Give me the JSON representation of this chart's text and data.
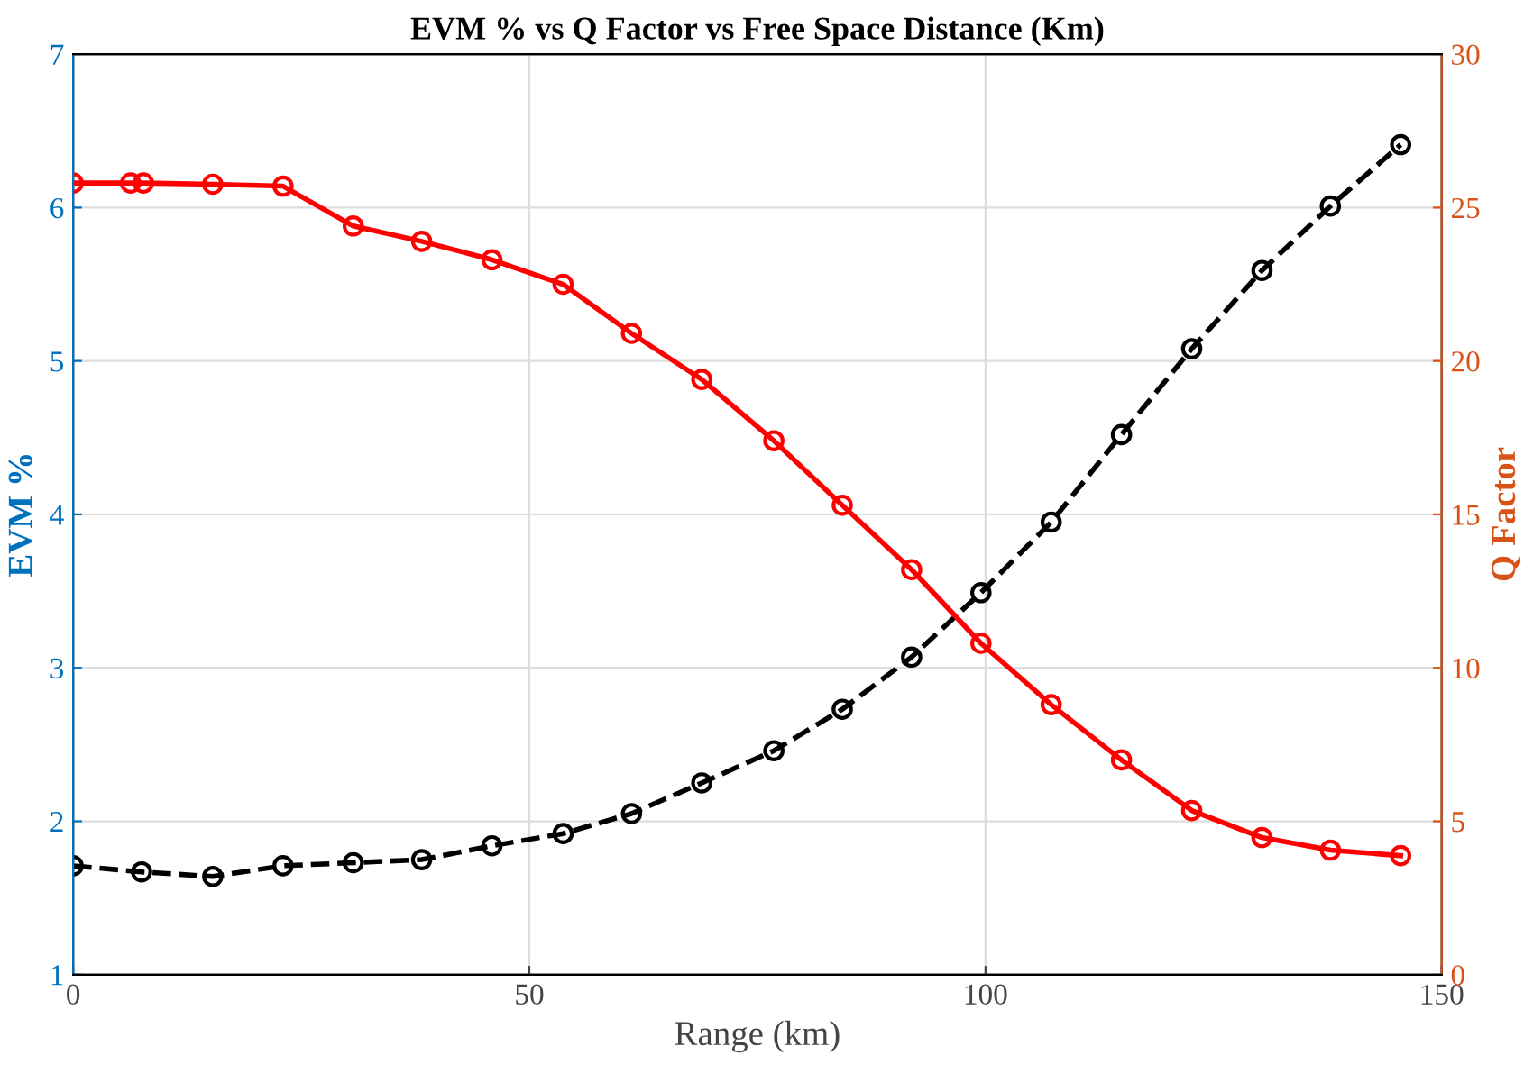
{
  "chart_data": {
    "type": "line",
    "title": "EVM % vs Q Factor vs Free Space Distance (Km)",
    "xlabel": "Range (km)",
    "ylabel": "EVM %",
    "y2label": "Q Factor",
    "xlim": [
      0,
      150
    ],
    "xticks": [
      0,
      50,
      100,
      150
    ],
    "ylim": [
      1,
      7
    ],
    "yticks": [
      1,
      2,
      3,
      4,
      5,
      6,
      7
    ],
    "y2lim": [
      0,
      30
    ],
    "y2ticks": [
      0,
      5,
      10,
      15,
      20,
      25,
      30
    ],
    "grid": true,
    "marker": "circle",
    "series": [
      {
        "color": "#000000",
        "line_style": "dashed",
        "x": [
          0,
          7.5,
          15.3,
          23,
          30.7,
          38.2,
          45.9,
          53.7,
          61.2,
          68.9,
          76.8,
          84.3,
          91.9,
          99.5,
          107.2,
          114.9,
          122.6,
          130.3,
          137.8,
          145.5
        ],
        "values": [
          1.71,
          1.67,
          1.64,
          1.71,
          1.73,
          1.75,
          1.84,
          1.92,
          2.05,
          2.25,
          2.46,
          2.73,
          3.07,
          3.49,
          3.95,
          4.52,
          5.08,
          5.59,
          6.01,
          6.41
        ]
      },
      {
        "color": "#ff0000",
        "line_style": "solid",
        "axis": "y2",
        "x": [
          0,
          6.3,
          7.7,
          15.3,
          23,
          30.7,
          38.2,
          45.9,
          53.7,
          61.2,
          68.9,
          76.8,
          84.3,
          91.9,
          99.5,
          107.2,
          114.9,
          122.6,
          130.3,
          137.8,
          145.5
        ],
        "values": [
          25.8,
          25.8,
          25.8,
          25.76,
          25.7,
          24.4,
          23.9,
          23.3,
          22.5,
          20.9,
          19.4,
          17.4,
          15.3,
          13.2,
          10.8,
          8.8,
          7.0,
          5.35,
          4.47,
          4.06,
          3.88
        ]
      }
    ]
  }
}
